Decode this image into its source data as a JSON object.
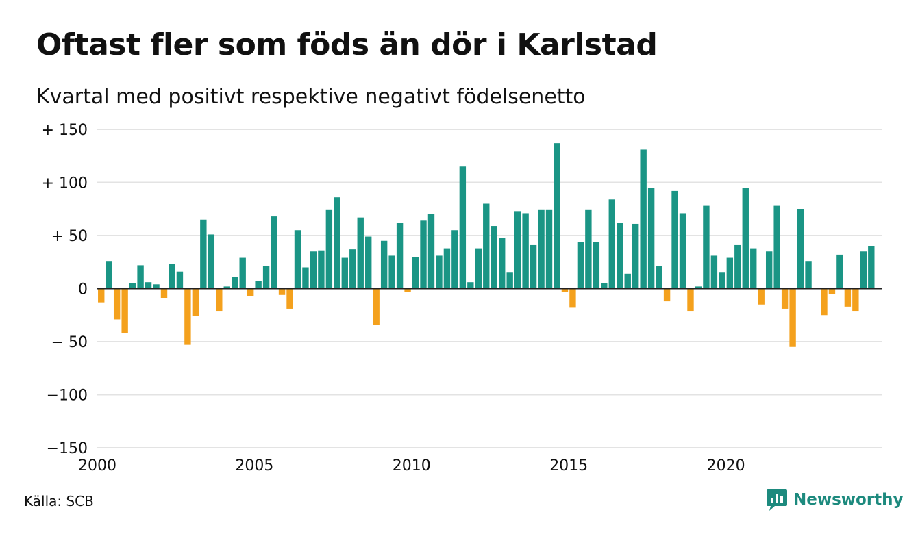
{
  "header": {
    "title": "Oftast fler som föds än dör i Karlstad",
    "subtitle": "Kvartal med positivt respektive negativt födelsenetto"
  },
  "footer": {
    "source": "Källa: SCB",
    "brand": "Newsworthy",
    "brand_icon": "chart-bubble-icon"
  },
  "colors": {
    "positive": "#1a9585",
    "negative": "#f4a11d",
    "grid": "#e3e3e3",
    "zero_line": "#222222",
    "brand": "#1d8a7e"
  },
  "chart_data": {
    "type": "bar",
    "x_start": "2000 Q1",
    "x_ticks": [
      "2000",
      "2005",
      "2010",
      "2015",
      "2020"
    ],
    "y_ticks": [
      "+ 150",
      "+ 100",
      "+  50",
      "0",
      "− 50",
      "−100",
      "−150"
    ],
    "ylim": [
      -150,
      150
    ],
    "grid": true,
    "legend": "none",
    "values": [
      -13,
      26,
      -29,
      -42,
      5,
      22,
      6,
      4,
      -9,
      23,
      16,
      -53,
      -26,
      65,
      51,
      -21,
      2,
      11,
      29,
      -7,
      7,
      21,
      68,
      -6,
      -19,
      55,
      20,
      35,
      36,
      74,
      86,
      29,
      37,
      67,
      49,
      -34,
      45,
      31,
      62,
      -3,
      30,
      64,
      70,
      31,
      38,
      55,
      115,
      6,
      38,
      80,
      59,
      48,
      15,
      73,
      71,
      41,
      74,
      74,
      137,
      -3,
      -18,
      44,
      74,
      44,
      5,
      84,
      62,
      14,
      61,
      131,
      95,
      21,
      -12,
      92,
      71,
      -21,
      2,
      78,
      31,
      15,
      29,
      41,
      95,
      38,
      -15,
      35,
      78,
      -19,
      -55,
      75,
      26,
      0,
      -25,
      -5,
      32,
      -17,
      -21,
      35,
      40
    ]
  }
}
